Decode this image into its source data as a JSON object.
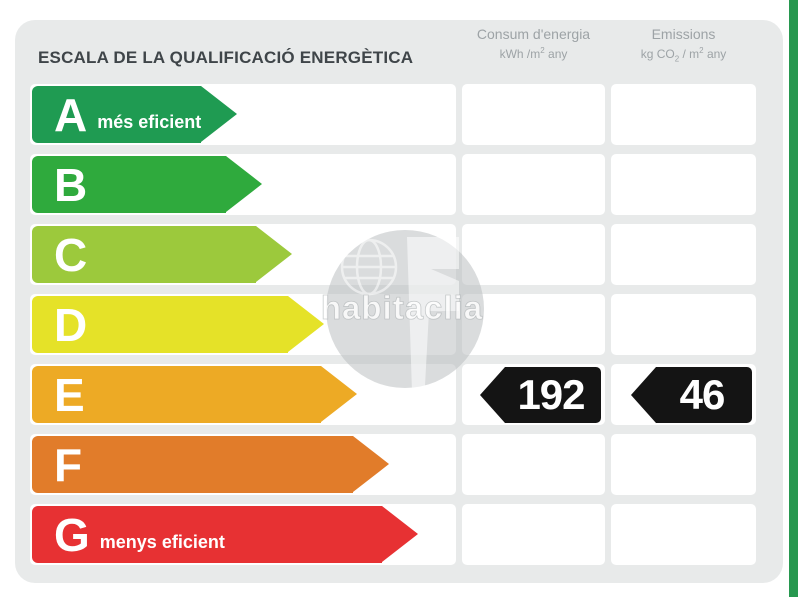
{
  "title": "ESCALA DE LA QUALIFICACIÓ ENERGÈTICA",
  "columns": {
    "energy": {
      "label": "Consum d'energia",
      "unit_base": "kWh /m",
      "unit_sup": "2",
      "unit_tail": " any"
    },
    "emissions": {
      "label": "Emissions",
      "unit_base": "kg CO",
      "unit_sub": "2",
      "unit_mid": " / m",
      "unit_sup": "2",
      "unit_tail": " any"
    }
  },
  "scale": {
    "ratings": [
      {
        "letter": "A",
        "note": "més eficient",
        "color": "#1f9b52",
        "arrow_width": 200
      },
      {
        "letter": "B",
        "note": "",
        "color": "#2faa3d",
        "arrow_width": 230
      },
      {
        "letter": "C",
        "note": "",
        "color": "#9cc93c",
        "arrow_width": 260
      },
      {
        "letter": "D",
        "note": "",
        "color": "#e5e228",
        "arrow_width": 292
      },
      {
        "letter": "E",
        "note": "",
        "color": "#edaa25",
        "arrow_width": 325
      },
      {
        "letter": "F",
        "note": "",
        "color": "#e17c2a",
        "arrow_width": 357
      },
      {
        "letter": "G",
        "note": "menys eficient",
        "color": "#e73133",
        "arrow_width": 386
      }
    ]
  },
  "values": {
    "rating_row": "E",
    "energy": "192",
    "emissions": "46",
    "arrow_color": "#141414"
  },
  "watermark": {
    "text": "habitaclia"
  },
  "page": {
    "accent_stripe_color": "#27984f",
    "panel_background": "#e8eaea"
  },
  "chart_data": {
    "type": "bar",
    "title": "ESCALA DE LA QUALIFICACIÓ ENERGÈTICA",
    "categories": [
      "A",
      "B",
      "C",
      "D",
      "E",
      "F",
      "G"
    ],
    "category_notes": {
      "A": "més eficient",
      "G": "menys eficient"
    },
    "series": [
      {
        "name": "scale-arrow-relative-length-px",
        "values": [
          200,
          230,
          260,
          292,
          325,
          357,
          386
        ]
      }
    ],
    "bar_colors": [
      "#1f9b52",
      "#2faa3d",
      "#9cc93c",
      "#e5e228",
      "#edaa25",
      "#e17c2a",
      "#e73133"
    ],
    "columns": [
      "Consum d'energia (kWh/m² any)",
      "Emissions (kg CO₂/m² any)"
    ],
    "annotations": [
      {
        "category": "E",
        "column": "Consum d'energia (kWh/m² any)",
        "value": 192
      },
      {
        "category": "E",
        "column": "Emissions (kg CO₂/m² any)",
        "value": 46
      }
    ],
    "assigned_rating": "E",
    "legend": "none",
    "grid": "off"
  }
}
